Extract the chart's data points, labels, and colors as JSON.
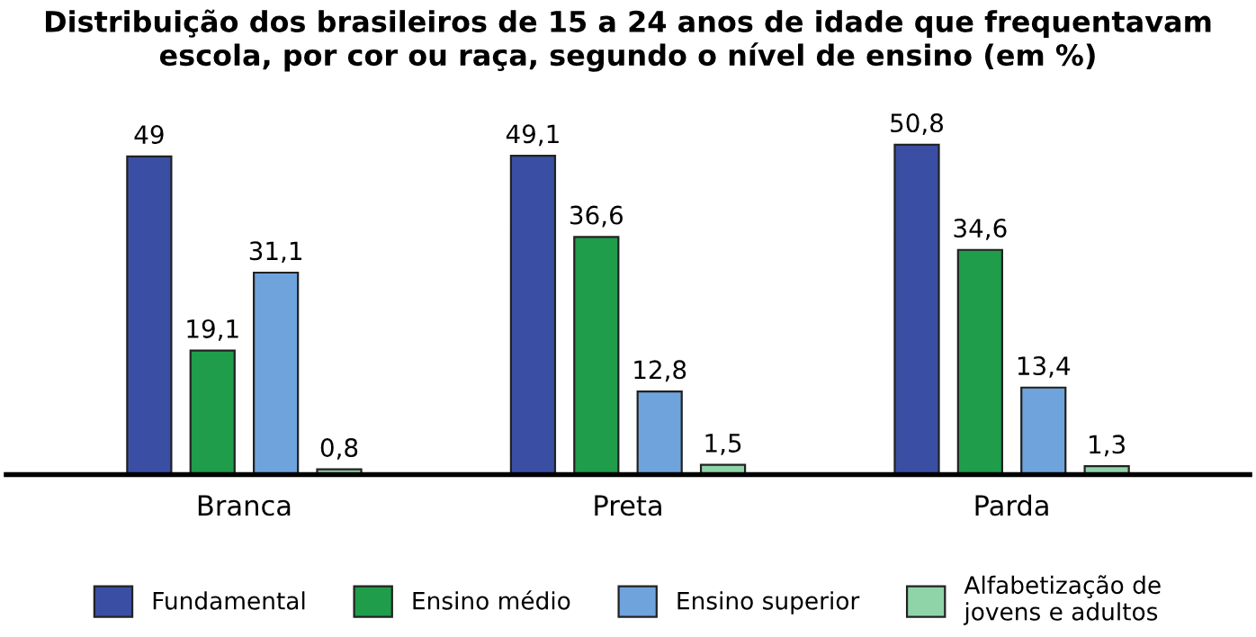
{
  "chart_data": {
    "type": "bar",
    "title": "Distribuição dos brasileiros de 15 a 24 anos de idade que frequentavam escola, por cor ou raça, segundo o nível de ensino (em %)",
    "categories": [
      "Branca",
      "Preta",
      "Parda"
    ],
    "series": [
      {
        "name": "Fundamental",
        "color": "#3a4fa3",
        "values": [
          49,
          49.1,
          50.8
        ],
        "value_labels": [
          "49",
          "49,1",
          "50,8"
        ]
      },
      {
        "name": "Ensino médio",
        "color": "#1f9d4b",
        "values": [
          19.1,
          36.6,
          34.6
        ],
        "value_labels": [
          "19,1",
          "36,6",
          "34,6"
        ]
      },
      {
        "name": "Ensino superior",
        "color": "#6fa3dc",
        "values": [
          31.1,
          12.8,
          13.4
        ],
        "value_labels": [
          "31,1",
          "12,8",
          "13,4"
        ]
      },
      {
        "name": "Alfabetização de\njovens e adultos",
        "color": "#8fd4a9",
        "values": [
          0.8,
          1.5,
          1.3
        ],
        "value_labels": [
          "0,8",
          "1,5",
          "1,3"
        ]
      }
    ],
    "legend": "bottom"
  }
}
